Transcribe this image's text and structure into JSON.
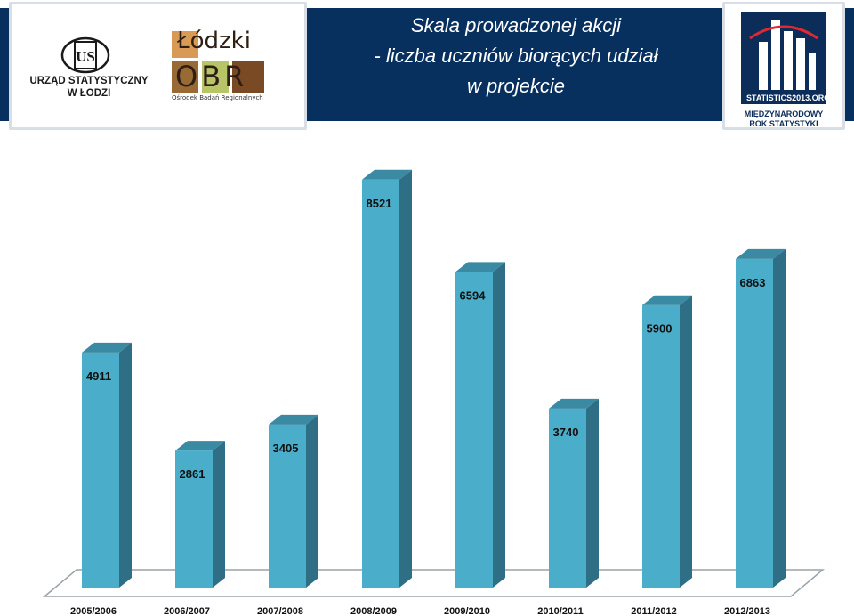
{
  "header": {
    "title_lines": [
      "Skala prowadzonej akcji",
      "- liczba uczniów biorących udział",
      "w projekcie"
    ],
    "left_logo_1": {
      "line1": "URZĄD  STATYSTYCZNY",
      "line2": "W ŁODZI",
      "icon": "ustat-logo-icon"
    },
    "left_logo_2": {
      "word1": "Łódzki",
      "word2": "OBR",
      "subtitle": "Ośrodek Badań Regionalnych",
      "icon": "lodzki-obr-logo-icon"
    },
    "right_logo": {
      "site": "STATISTICS2013.ORG",
      "line1": "MIĘDZYNARODOWY",
      "line2": "ROK STATYSTYKI",
      "icon": "statistics2013-logo-icon"
    }
  },
  "colors": {
    "header_bg": "#08305f",
    "bar_front": "#4aadc9",
    "bar_side": "#2f6f86",
    "bar_top": "#3a8aa3",
    "floor": "#ffffff",
    "floor_edge": "#9aa3aa"
  },
  "chart_data": {
    "type": "bar",
    "style": "3d-columns",
    "categories": [
      "2005/2006",
      "2006/2007",
      "2007/2008",
      "2008/2009",
      "2009/2010",
      "2010/2011",
      "2011/2012",
      "2012/2013"
    ],
    "values": [
      4911,
      2861,
      3405,
      8521,
      6594,
      3740,
      5900,
      6863
    ],
    "data_labels": [
      "4911",
      "2861",
      "3405",
      "8521",
      "6594",
      "3740",
      "5900",
      "6863"
    ],
    "title": "",
    "xlabel": "",
    "ylabel": "",
    "ylim": [
      0,
      9000
    ],
    "grid": false,
    "legend": "none"
  }
}
